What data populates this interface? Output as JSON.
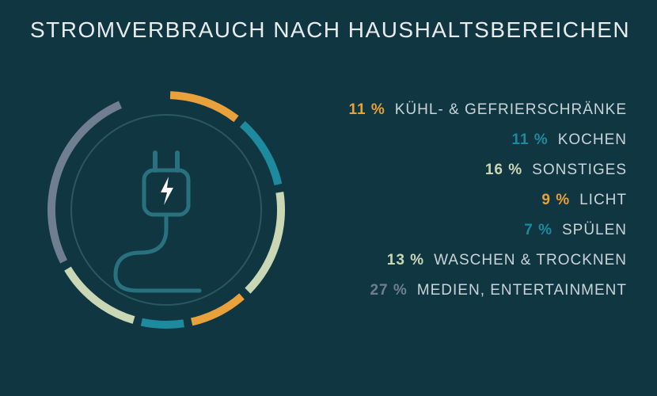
{
  "title": "STROMVERBRAUCH NACH HAUSHALTSBEREICHEN",
  "chart": {
    "type": "donut",
    "background_color": "#103642",
    "title_color": "#e8ecee",
    "title_fontsize": 28,
    "label_color": "#c9d4d8",
    "label_fontsize": 19,
    "outer_radius": 150,
    "ring_width": 10,
    "gap_deg": 4,
    "start_angle_deg": -90,
    "inner_ring": {
      "radius": 120,
      "stroke": "#2a5763",
      "stroke_width": 2
    },
    "icon": "plug-icon",
    "icon_stroke": "#2a717f",
    "icon_fill": "#ffffff",
    "segments": [
      {
        "key": "kuehl",
        "percent": 11,
        "label": "KÜHL- & GEFRIERSCHRÄNKE",
        "color": "#e9a13b",
        "pct_text": "11 %"
      },
      {
        "key": "kochen",
        "percent": 11,
        "label": "KOCHEN",
        "color": "#1e8a9e",
        "pct_text": "11 %"
      },
      {
        "key": "sonst",
        "percent": 16,
        "label": "SONSTIGES",
        "color": "#c9d7b4",
        "pct_text": "16 %"
      },
      {
        "key": "licht",
        "percent": 9,
        "label": "LICHT",
        "color": "#e9a13b",
        "pct_text": "9 %"
      },
      {
        "key": "spuelen",
        "percent": 7,
        "label": "SPÜLEN",
        "color": "#1e8a9e",
        "pct_text": "7 %"
      },
      {
        "key": "waschen",
        "percent": 13,
        "label": "WASCHEN & TROCKNEN",
        "color": "#c9d7b4",
        "pct_text": "13 %"
      },
      {
        "key": "medien",
        "percent": 27,
        "label": "MEDIEN, ENTERTAINMENT",
        "color": "#6f7e92",
        "pct_text": "27 %"
      }
    ]
  }
}
